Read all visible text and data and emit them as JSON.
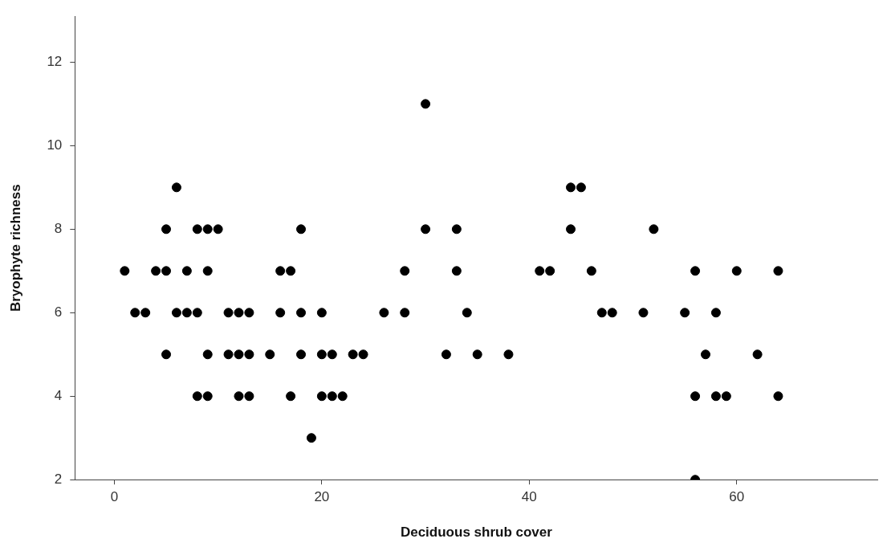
{
  "chart_data": {
    "type": "scatter",
    "xlabel": "Deciduous shrub cover",
    "ylabel": "Bryophyte richness",
    "marker": "circle",
    "grid": false,
    "legend": false,
    "xlim": [
      -3.8,
      73.6
    ],
    "ylim": [
      2,
      13.1
    ],
    "xticks": [
      0,
      20,
      40,
      60
    ],
    "yticks": [
      2,
      4,
      6,
      8,
      10,
      12
    ],
    "series": [
      {
        "color": "#000000",
        "x": [
          1,
          2,
          3,
          4,
          5,
          5,
          5,
          6,
          6,
          7,
          7,
          8,
          8,
          8,
          9,
          9,
          9,
          9,
          10,
          11,
          11,
          12,
          12,
          12,
          13,
          13,
          13,
          15,
          16,
          16,
          17,
          17,
          18,
          18,
          18,
          19,
          20,
          20,
          20,
          21,
          21,
          22,
          23,
          24,
          26,
          28,
          28,
          30,
          30,
          32,
          33,
          33,
          34,
          35,
          38,
          41,
          42,
          44,
          44,
          45,
          46,
          47,
          48,
          51,
          52,
          55,
          56,
          56,
          56,
          57,
          58,
          58,
          59,
          60,
          62,
          64,
          64
        ],
        "values": [
          7,
          6,
          6,
          7,
          8,
          7,
          5,
          9,
          6,
          7,
          6,
          8,
          6,
          4,
          8,
          7,
          5,
          4,
          8,
          6,
          5,
          6,
          5,
          4,
          6,
          5,
          4,
          5,
          7,
          6,
          7,
          4,
          8,
          6,
          5,
          3,
          6,
          5,
          4,
          5,
          4,
          4,
          5,
          5,
          6,
          7,
          6,
          11,
          8,
          5,
          8,
          7,
          6,
          5,
          5,
          7,
          7,
          9,
          8,
          9,
          7,
          6,
          6,
          6,
          8,
          6,
          7,
          4,
          2,
          5,
          6,
          4,
          4,
          7,
          5,
          7,
          4
        ]
      }
    ]
  }
}
